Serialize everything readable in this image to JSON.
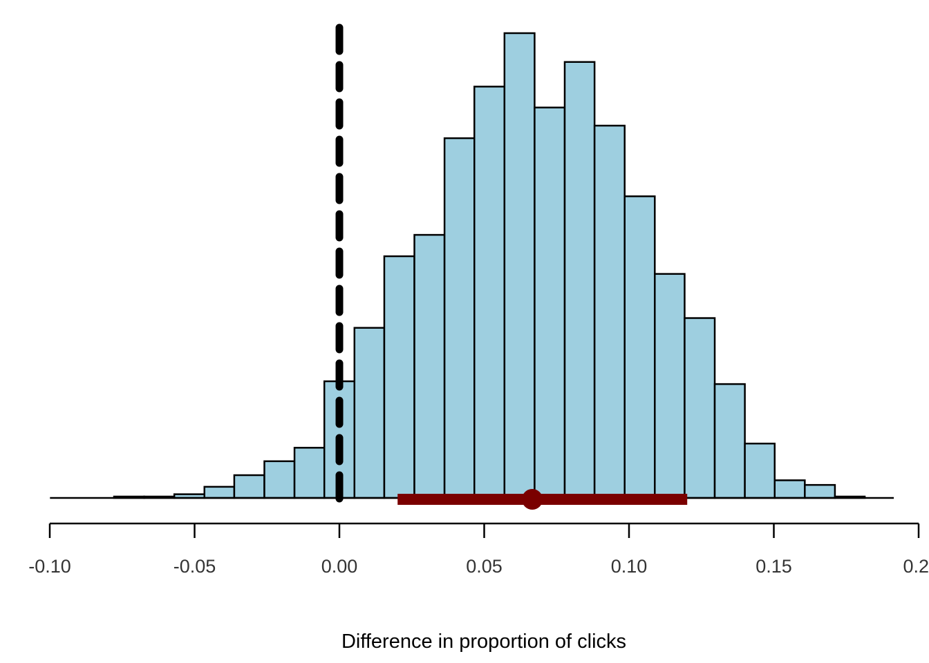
{
  "chart_data": {
    "type": "bar",
    "subtype": "histogram",
    "title": "",
    "xlabel": "Difference in proportion of clicks",
    "ylabel": "",
    "xlim": [
      -0.1,
      0.2
    ],
    "ylim": [
      0,
      1.0
    ],
    "x_ticks": [
      "-0.10",
      "-0.05",
      "0.00",
      "0.05",
      "0.10",
      "0.15",
      "0.2"
    ],
    "x_tick_values": [
      -0.1,
      -0.05,
      0.0,
      0.05,
      0.1,
      0.15,
      0.2
    ],
    "y_axis_shown": false,
    "grid": false,
    "legend": "none",
    "bin_edges": [
      -0.0985,
      -0.0881,
      -0.0778,
      -0.0674,
      -0.057,
      -0.0466,
      -0.0363,
      -0.0259,
      -0.0155,
      -0.0052,
      0.0052,
      0.0155,
      0.0259,
      0.0363,
      0.0466,
      0.057,
      0.0674,
      0.0778,
      0.0881,
      0.0985,
      0.1089,
      0.1192,
      0.1296,
      0.14,
      0.1503,
      0.1607,
      0.1711,
      0.1814
    ],
    "counts": [
      0.0,
      0.0,
      0.003,
      0.003,
      0.008,
      0.024,
      0.049,
      0.079,
      0.108,
      0.251,
      0.366,
      0.52,
      0.566,
      0.774,
      0.885,
      1.0,
      0.84,
      0.938,
      0.801,
      0.649,
      0.482,
      0.387,
      0.245,
      0.117,
      0.038,
      0.028,
      0.003
    ],
    "reference_line": {
      "x": 0.0,
      "style": "dashed"
    },
    "point_estimate": 0.0666,
    "interval": [
      0.0201,
      0.1201
    ],
    "colors": {
      "bar_fill": "#9ecfe0",
      "bar_stroke": "#000000",
      "reference_line": "#000000",
      "interval": "#7a0000",
      "point": "#7a0000"
    }
  }
}
